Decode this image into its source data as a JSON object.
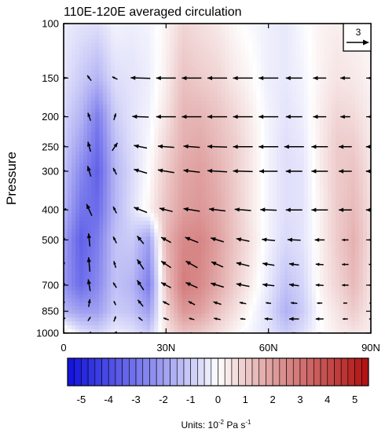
{
  "chart_data": {
    "type": "heatmap",
    "title": "110E-120E averaged circulation",
    "xlabel": "",
    "ylabel": "Pressure",
    "x_ticks": [
      {
        "value": 0,
        "label": "0"
      },
      {
        "value": 30,
        "label": "30N"
      },
      {
        "value": 60,
        "label": "60N"
      },
      {
        "value": 90,
        "label": "90N"
      }
    ],
    "y_ticks": [
      {
        "value": 100,
        "label": "100"
      },
      {
        "value": 150,
        "label": "150"
      },
      {
        "value": 200,
        "label": "200"
      },
      {
        "value": 250,
        "label": "250"
      },
      {
        "value": 300,
        "label": "300"
      },
      {
        "value": 400,
        "label": "400"
      },
      {
        "value": 500,
        "label": "500"
      },
      {
        "value": 700,
        "label": "700"
      },
      {
        "value": 850,
        "label": "850"
      },
      {
        "value": 1000,
        "label": "1000"
      }
    ],
    "xlim": [
      0,
      90
    ],
    "ylim": [
      1000,
      100
    ],
    "y_scale": "log",
    "colorbar": {
      "min": -5.5,
      "max": 5.5,
      "step": 0.25,
      "tick_labels": [
        "-5",
        "-4",
        "-3",
        "-2",
        "-1",
        "0",
        "1",
        "2",
        "3",
        "4",
        "5"
      ],
      "tick_values": [
        -5,
        -4,
        -3,
        -2,
        -1,
        0,
        1,
        2,
        3,
        4,
        5
      ],
      "units_prefix": "Units: 10",
      "units_exp1": "-2",
      "units_mid": " Pa s",
      "units_exp2": "-1",
      "neg_color": "#1010dd",
      "pos_color": "#b01010",
      "neutral_color": "#ffffff"
    },
    "reference_vector": {
      "label": "3",
      "magnitude": 3
    },
    "field": {
      "description": "vertical velocity omega",
      "latitudes": [
        0,
        5,
        10,
        15,
        20,
        25,
        30,
        35,
        40,
        45,
        50,
        55,
        60,
        65,
        70,
        75,
        80,
        85,
        90
      ],
      "levels": [
        100,
        150,
        200,
        250,
        300,
        400,
        500,
        700,
        850,
        1000
      ],
      "values": [
        [
          -0.3,
          -0.5,
          -0.6,
          -0.2,
          -0.3,
          -0.2,
          0.2,
          0.8,
          0.6,
          0.4,
          0.1,
          -0.1,
          -0.3,
          -0.4,
          -0.1,
          0.2,
          0.3,
          0.2,
          0.1
        ],
        [
          -0.5,
          -1.0,
          -1.5,
          -0.6,
          -0.5,
          -0.3,
          0.3,
          1.2,
          1.0,
          0.8,
          0.4,
          0.1,
          -0.3,
          -0.4,
          -0.2,
          0.2,
          0.5,
          0.4,
          0.2
        ],
        [
          -0.8,
          -1.5,
          -2.8,
          -1.0,
          -0.5,
          -0.2,
          0.5,
          1.5,
          1.5,
          1.2,
          0.8,
          0.3,
          -0.2,
          -0.5,
          -0.3,
          0.3,
          0.8,
          0.7,
          0.3
        ],
        [
          -1.0,
          -2.0,
          -3.2,
          -1.3,
          -0.6,
          -0.1,
          0.8,
          1.6,
          1.8,
          1.4,
          1.0,
          0.4,
          -0.2,
          -0.6,
          -0.4,
          0.3,
          1.0,
          1.0,
          0.4
        ],
        [
          -1.2,
          -2.5,
          -3.5,
          -1.5,
          -0.7,
          0.0,
          1.0,
          1.8,
          2.0,
          1.6,
          1.0,
          0.4,
          -0.2,
          -0.6,
          -0.5,
          0.3,
          1.0,
          1.2,
          0.5
        ],
        [
          -1.5,
          -3.0,
          -3.2,
          -1.5,
          -0.6,
          0.2,
          1.2,
          2.0,
          2.2,
          1.8,
          1.1,
          0.4,
          -0.2,
          -0.6,
          -0.5,
          0.2,
          1.0,
          1.4,
          0.6
        ],
        [
          -2.0,
          -3.5,
          -2.8,
          -1.2,
          -1.0,
          -2.0,
          1.5,
          2.5,
          2.6,
          2.0,
          1.2,
          0.5,
          -0.2,
          -0.7,
          -0.5,
          0.2,
          1.0,
          1.6,
          0.6
        ],
        [
          -2.2,
          -3.2,
          -2.5,
          -1.2,
          -1.5,
          -2.8,
          1.2,
          2.8,
          2.5,
          1.8,
          1.0,
          0.3,
          -0.4,
          -1.2,
          -0.8,
          0.2,
          0.8,
          1.4,
          0.5
        ],
        [
          -1.5,
          -2.0,
          -2.0,
          -1.0,
          -1.2,
          -2.0,
          0.8,
          2.2,
          2.0,
          1.2,
          0.6,
          0.0,
          -0.6,
          -1.6,
          -1.0,
          0.0,
          0.5,
          1.0,
          0.4
        ],
        [
          0.5,
          -0.5,
          -0.8,
          -0.3,
          -0.5,
          -1.0,
          0.5,
          1.2,
          1.0,
          0.6,
          0.2,
          -0.2,
          -0.5,
          -1.0,
          -0.6,
          0.0,
          0.3,
          0.5,
          0.3
        ]
      ]
    },
    "wind_vectors": {
      "latitudes": [
        0,
        7.5,
        15,
        22.5,
        30,
        37.5,
        45,
        52.5,
        60,
        67.5,
        75,
        82.5,
        90
      ],
      "levels": [
        150,
        200,
        250,
        300,
        400,
        500,
        600,
        700,
        800,
        900,
        1000
      ],
      "u": [
        [
          1.0,
          -0.6,
          -0.8,
          -3.0,
          -3.0,
          -3.0,
          -3.0,
          -3.0,
          -3.0,
          -2.5,
          -2.0,
          -1.5,
          -1.0
        ],
        [
          0.5,
          -0.4,
          0.3,
          -2.5,
          -3.0,
          -3.0,
          -3.0,
          -3.0,
          -3.0,
          -2.5,
          -2.0,
          -1.5,
          -1.0
        ],
        [
          0.4,
          -0.4,
          0.8,
          -2.0,
          -2.5,
          -2.5,
          -3.0,
          -3.0,
          -3.0,
          -3.0,
          -2.5,
          -2.0,
          -1.5
        ],
        [
          0.4,
          -0.5,
          -0.5,
          -2.0,
          -2.5,
          -2.5,
          -3.0,
          -3.0,
          -2.8,
          -2.5,
          -2.5,
          -2.0,
          -1.5
        ],
        [
          0.8,
          -0.8,
          -0.5,
          -2.0,
          -2.0,
          -2.5,
          -2.5,
          -2.5,
          -2.5,
          -2.5,
          -2.5,
          -2.0,
          -1.5
        ],
        [
          0.4,
          -0.2,
          -0.5,
          -1.0,
          -1.5,
          -2.0,
          -2.0,
          -2.0,
          -2.0,
          -2.0,
          -1.5,
          -1.0,
          -0.8
        ],
        [
          0.3,
          -0.2,
          -0.3,
          -1.0,
          -1.5,
          -1.8,
          -1.8,
          -2.0,
          -1.8,
          -1.5,
          -1.2,
          -1.0,
          -0.6
        ],
        [
          0.4,
          -0.3,
          -0.5,
          -1.0,
          -1.5,
          -1.8,
          -2.0,
          -2.0,
          -1.8,
          -1.5,
          -1.2,
          -1.0,
          -0.6
        ],
        [
          0.3,
          0.2,
          -0.3,
          -0.8,
          -1.0,
          -1.0,
          -1.2,
          -1.0,
          -0.8,
          -1.0,
          -0.8,
          -0.6,
          -0.4
        ],
        [
          0.5,
          0.4,
          0.3,
          -0.6,
          -0.8,
          -0.8,
          -1.0,
          -0.8,
          -1.2,
          -1.5,
          -1.2,
          -0.8,
          -0.5
        ],
        [
          0.5,
          0.6,
          0.6,
          0.4,
          -0.4,
          -0.3,
          -0.4,
          -0.2,
          -0.6,
          -0.8,
          -0.5,
          -0.3,
          -0.2
        ]
      ],
      "v": [
        [
          0.1,
          0.8,
          0.4,
          0.1,
          0.0,
          0.0,
          0.0,
          0.0,
          0.0,
          0.0,
          0.0,
          0.0,
          0.0
        ],
        [
          0.2,
          1.2,
          1.0,
          0.1,
          0.0,
          0.0,
          0.0,
          0.0,
          0.0,
          0.0,
          0.0,
          0.0,
          0.0
        ],
        [
          0.3,
          1.5,
          1.2,
          0.4,
          0.2,
          0.2,
          0.1,
          0.0,
          0.0,
          0.0,
          0.0,
          0.0,
          0.0
        ],
        [
          0.3,
          1.6,
          1.0,
          0.6,
          0.4,
          0.3,
          0.2,
          0.1,
          0.0,
          0.0,
          0.0,
          0.0,
          0.0
        ],
        [
          0.4,
          1.8,
          1.0,
          0.8,
          0.5,
          0.4,
          0.3,
          0.2,
          0.1,
          0.0,
          0.0,
          0.0,
          0.0
        ],
        [
          0.5,
          2.0,
          1.0,
          1.2,
          0.8,
          0.8,
          0.6,
          0.4,
          0.2,
          0.1,
          0.0,
          0.0,
          0.0
        ],
        [
          0.6,
          2.2,
          1.0,
          1.5,
          1.0,
          1.0,
          0.8,
          0.5,
          0.3,
          0.2,
          0.1,
          0.0,
          0.0
        ],
        [
          0.5,
          1.8,
          0.8,
          1.5,
          0.8,
          0.8,
          0.6,
          0.4,
          0.2,
          0.2,
          0.1,
          0.0,
          0.0
        ],
        [
          0.4,
          1.2,
          0.6,
          1.0,
          0.5,
          0.5,
          0.4,
          0.2,
          0.1,
          0.1,
          0.0,
          0.0,
          0.0
        ],
        [
          0.3,
          0.6,
          0.8,
          0.5,
          0.3,
          0.2,
          0.2,
          0.1,
          0.1,
          0.0,
          0.0,
          0.0,
          0.0
        ],
        [
          0.1,
          0.3,
          0.4,
          0.2,
          0.1,
          0.1,
          0.0,
          0.0,
          0.0,
          0.0,
          0.0,
          0.0,
          0.0
        ]
      ]
    }
  }
}
